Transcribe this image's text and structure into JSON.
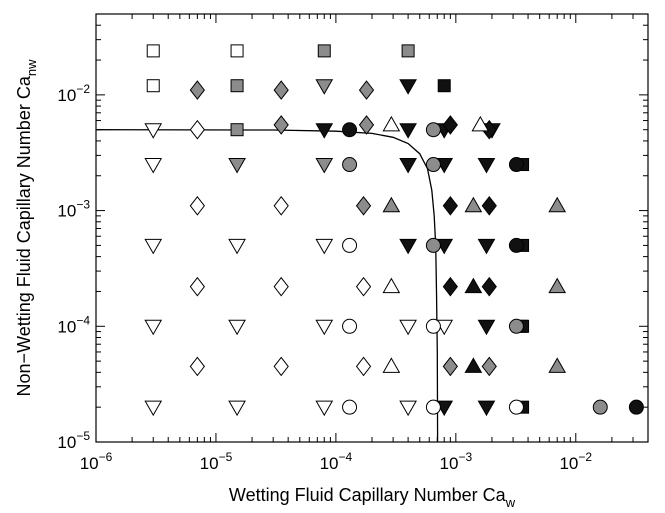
{
  "chart_data": {
    "type": "scatter",
    "title": "",
    "xlabel": {
      "main": "Wetting Fluid Capillary Number Ca",
      "sub": "w"
    },
    "ylabel": {
      "main": "Non−Wetting Fluid Capillary Number Ca",
      "sub": "nw"
    },
    "x_scale": "log",
    "y_scale": "log",
    "xlim": [
      1e-06,
      0.04
    ],
    "ylim": [
      1e-05,
      0.05
    ],
    "x_ticks": [
      {
        "value": 1e-06,
        "base": "10",
        "exp": "−6"
      },
      {
        "value": 1e-05,
        "base": "10",
        "exp": "−5"
      },
      {
        "value": 0.0001,
        "base": "10",
        "exp": "−4"
      },
      {
        "value": 0.001,
        "base": "10",
        "exp": "−3"
      },
      {
        "value": 0.01,
        "base": "10",
        "exp": "−2"
      }
    ],
    "y_ticks": [
      {
        "value": 1e-05,
        "base": "10",
        "exp": "−5"
      },
      {
        "value": 0.0001,
        "base": "10",
        "exp": "−4"
      },
      {
        "value": 0.001,
        "base": "10",
        "exp": "−3"
      },
      {
        "value": 0.01,
        "base": "10",
        "exp": "−2"
      }
    ],
    "grid": false,
    "colors": {
      "white": "#ffffff",
      "gray": "#8c8c8c",
      "black": "#111111"
    },
    "series": [
      {
        "shape": "square",
        "fill": "white",
        "points": [
          [
            3e-06,
            0.024
          ],
          [
            3e-06,
            0.012
          ],
          [
            1.5e-05,
            0.024
          ]
        ]
      },
      {
        "shape": "square",
        "fill": "gray",
        "points": [
          [
            1.5e-05,
            0.012
          ],
          [
            1.5e-05,
            0.005
          ],
          [
            8e-05,
            0.024
          ],
          [
            0.0004,
            0.024
          ],
          [
            0.0035,
            0.0001
          ]
        ]
      },
      {
        "shape": "square",
        "fill": "black",
        "points": [
          [
            0.0008,
            0.012
          ],
          [
            0.0036,
            0.0025
          ],
          [
            0.0036,
            0.0005
          ],
          [
            0.0036,
            0.0001
          ],
          [
            0.0036,
            2e-05
          ]
        ]
      },
      {
        "shape": "triangle-down",
        "fill": "white",
        "points": [
          [
            3e-06,
            0.005
          ],
          [
            3e-06,
            0.0025
          ],
          [
            3e-06,
            0.0005
          ],
          [
            3e-06,
            0.0001
          ],
          [
            3e-06,
            2e-05
          ],
          [
            1.5e-05,
            0.0005
          ],
          [
            1.5e-05,
            0.0001
          ],
          [
            1.5e-05,
            2e-05
          ],
          [
            8e-05,
            0.0005
          ],
          [
            8e-05,
            0.0001
          ],
          [
            8e-05,
            2e-05
          ],
          [
            0.0004,
            0.0001
          ],
          [
            0.0004,
            2e-05
          ],
          [
            0.0008,
            0.0001
          ]
        ]
      },
      {
        "shape": "triangle-down",
        "fill": "gray",
        "points": [
          [
            8e-05,
            0.012
          ],
          [
            1.5e-05,
            0.0025
          ],
          [
            8e-05,
            0.0025
          ]
        ]
      },
      {
        "shape": "triangle-down",
        "fill": "black",
        "points": [
          [
            0.0004,
            0.012
          ],
          [
            8e-05,
            0.005
          ],
          [
            0.0004,
            0.005
          ],
          [
            0.0008,
            0.005
          ],
          [
            0.002,
            0.005
          ],
          [
            0.0004,
            0.0025
          ],
          [
            0.0008,
            0.0025
          ],
          [
            0.0018,
            0.0025
          ],
          [
            0.0004,
            0.0005
          ],
          [
            0.0008,
            0.0005
          ],
          [
            0.0018,
            0.0005
          ],
          [
            0.0018,
            0.0001
          ],
          [
            0.0008,
            2e-05
          ],
          [
            0.0018,
            2e-05
          ]
        ]
      },
      {
        "shape": "diamond",
        "fill": "white",
        "points": [
          [
            7e-06,
            0.005
          ],
          [
            7e-06,
            0.0011
          ],
          [
            3.5e-05,
            0.0011
          ],
          [
            7e-06,
            0.00022
          ],
          [
            3.5e-05,
            0.00022
          ],
          [
            0.00017,
            0.00022
          ],
          [
            7e-06,
            4.5e-05
          ],
          [
            3.5e-05,
            4.5e-05
          ],
          [
            0.00017,
            4.5e-05
          ]
        ]
      },
      {
        "shape": "diamond",
        "fill": "gray",
        "points": [
          [
            7e-06,
            0.011
          ],
          [
            3.5e-05,
            0.011
          ],
          [
            0.00018,
            0.011
          ],
          [
            3.5e-05,
            0.0055
          ],
          [
            0.00018,
            0.0055
          ],
          [
            0.00017,
            0.0011
          ],
          [
            0.0009,
            4.5e-05
          ],
          [
            0.0019,
            4.5e-05
          ]
        ]
      },
      {
        "shape": "diamond",
        "fill": "black",
        "points": [
          [
            0.0009,
            0.0055
          ],
          [
            0.0019,
            0.005
          ],
          [
            0.0009,
            0.0011
          ],
          [
            0.0019,
            0.0011
          ],
          [
            0.0009,
            0.00022
          ],
          [
            0.0019,
            0.00022
          ]
        ]
      },
      {
        "shape": "triangle-up",
        "fill": "white",
        "points": [
          [
            0.00029,
            0.0055
          ],
          [
            0.0016,
            0.0055
          ],
          [
            0.00029,
            0.00022
          ],
          [
            0.00029,
            4.5e-05
          ]
        ]
      },
      {
        "shape": "triangle-up",
        "fill": "gray",
        "points": [
          [
            0.00029,
            0.0011
          ],
          [
            0.0014,
            0.0011
          ],
          [
            0.007,
            0.0011
          ],
          [
            0.007,
            0.00022
          ],
          [
            0.007,
            4.5e-05
          ]
        ]
      },
      {
        "shape": "triangle-up",
        "fill": "black",
        "points": [
          [
            0.0014,
            0.00022
          ],
          [
            0.0014,
            4.5e-05
          ]
        ]
      },
      {
        "shape": "circle",
        "fill": "white",
        "points": [
          [
            0.00013,
            0.0005
          ],
          [
            0.00013,
            0.0001
          ],
          [
            0.00065,
            0.0001
          ],
          [
            0.00013,
            2e-05
          ],
          [
            0.00065,
            2e-05
          ],
          [
            0.0032,
            2e-05
          ]
        ]
      },
      {
        "shape": "circle",
        "fill": "gray",
        "points": [
          [
            0.00065,
            0.005
          ],
          [
            0.00013,
            0.0025
          ],
          [
            0.00065,
            0.0025
          ],
          [
            0.00065,
            0.0005
          ],
          [
            0.0032,
            0.0001
          ],
          [
            0.016,
            2e-05
          ]
        ]
      },
      {
        "shape": "circle",
        "fill": "black",
        "points": [
          [
            0.00013,
            0.005
          ],
          [
            0.0032,
            0.0025
          ],
          [
            0.0032,
            0.0005
          ],
          [
            0.032,
            2e-05
          ]
        ]
      }
    ],
    "curve": {
      "style": "line",
      "color": "#000000",
      "points": [
        [
          1e-06,
          0.005
        ],
        [
          3e-05,
          0.00497
        ],
        [
          0.0001,
          0.00485
        ],
        [
          0.0002,
          0.00465
        ],
        [
          0.0003,
          0.0043
        ],
        [
          0.0004,
          0.0038
        ],
        [
          0.0005,
          0.0031
        ],
        [
          0.00058,
          0.0023
        ],
        [
          0.00063,
          0.0015
        ],
        [
          0.00066,
          0.0009
        ],
        [
          0.00068,
          0.0005
        ],
        [
          0.00069,
          0.0002
        ],
        [
          0.0007,
          6e-05
        ],
        [
          0.000705,
          1e-05
        ]
      ]
    }
  }
}
